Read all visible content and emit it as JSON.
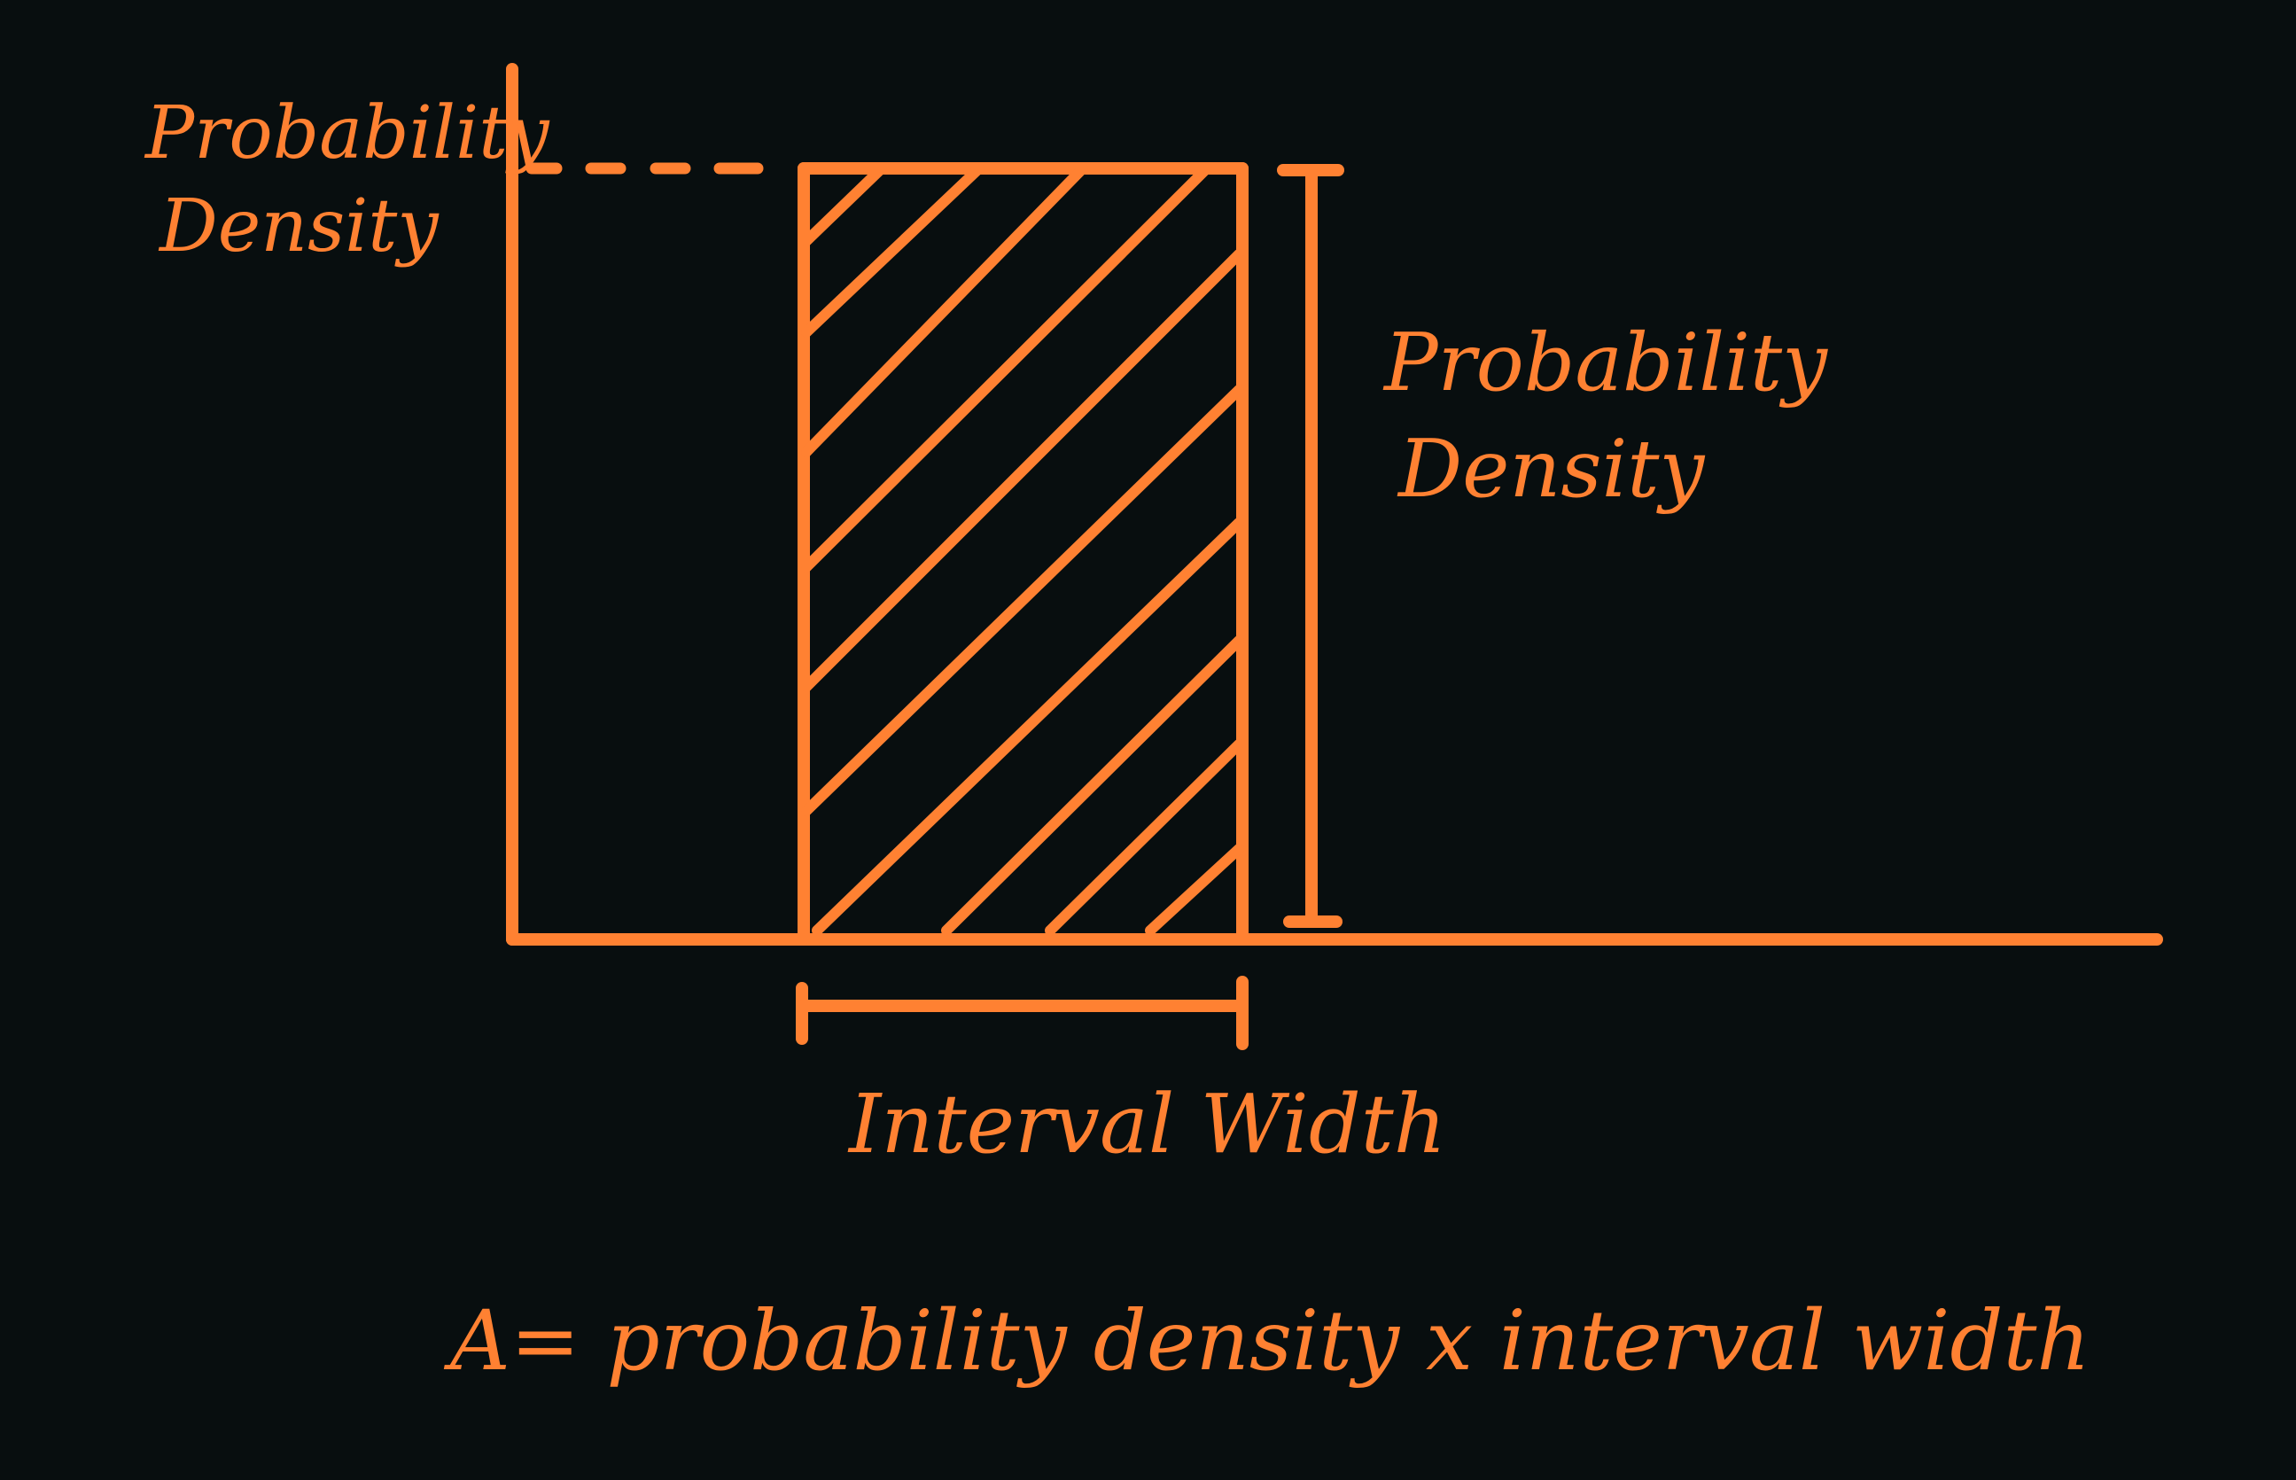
{
  "colors": {
    "background": "#080e0f",
    "ink": "#ff8132"
  },
  "labels": {
    "y_axis_label_line1": "Probability",
    "y_axis_label_line2": "Density",
    "height_label_line1": "Probability",
    "height_label_line2": "Density",
    "width_label": "Interval Width",
    "formula": "A= probability density x interval width"
  }
}
